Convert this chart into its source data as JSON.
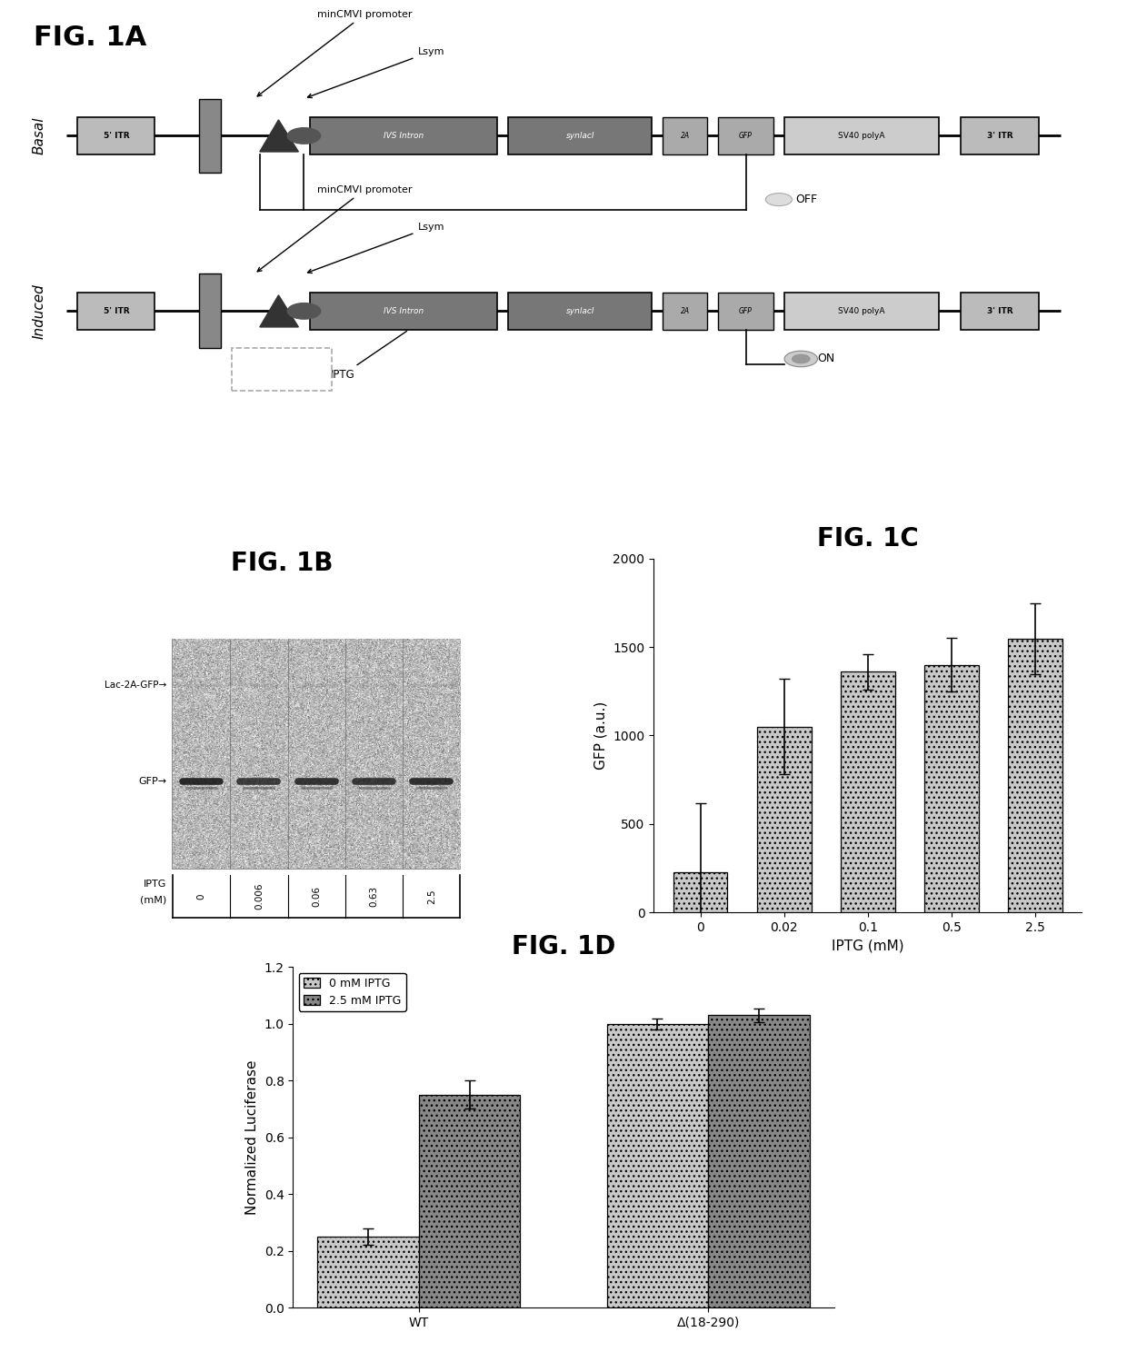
{
  "background_color": "#ffffff",
  "fig1A_title": "FIG. 1A",
  "fig1B_title": "FIG. 1B",
  "fig1C_title": "FIG. 1C",
  "fig1D_title": "FIG. 1D",
  "fig1C_categories": [
    "0",
    "0.02",
    "0.1",
    "0.5",
    "2.5"
  ],
  "fig1C_values": [
    230,
    1050,
    1360,
    1400,
    1545
  ],
  "fig1C_errors": [
    390,
    270,
    100,
    150,
    200
  ],
  "fig1C_ylabel": "GFP (a.u.)",
  "fig1C_xlabel": "IPTG (mM)",
  "fig1C_ylim": [
    0,
    2000
  ],
  "fig1C_yticks": [
    0,
    500,
    1000,
    1500,
    2000
  ],
  "fig1C_bar_color": "#c8c8c8",
  "fig1D_groups": [
    "WT",
    "Δ(18-290)"
  ],
  "fig1D_values_0mM": [
    0.25,
    1.0
  ],
  "fig1D_values_2p5mM": [
    0.75,
    1.03
  ],
  "fig1D_errors_0mM": [
    0.03,
    0.02
  ],
  "fig1D_errors_2p5mM": [
    0.05,
    0.025
  ],
  "fig1D_ylabel": "Normalized Luciferase",
  "fig1D_ylim": [
    0,
    1.2
  ],
  "fig1D_yticks": [
    0,
    0.2,
    0.4,
    0.6,
    0.8,
    1.0,
    1.2
  ],
  "fig1D_legend_0mM": "0 mM IPTG",
  "fig1D_legend_2p5mM": "2.5 mM IPTG",
  "fig1D_color_0mM": "#c8c8c8",
  "fig1D_color_2p5mM": "#888888",
  "blot_iptg_vals": [
    "0",
    "0.006",
    "0.06",
    "0.63",
    "2.5"
  ],
  "blot_label_lac": "Lac-2A-GFP→",
  "blot_label_gfp": "GFP→",
  "blot_label_iptg": "IPTG",
  "blot_label_mm": "(mM)"
}
